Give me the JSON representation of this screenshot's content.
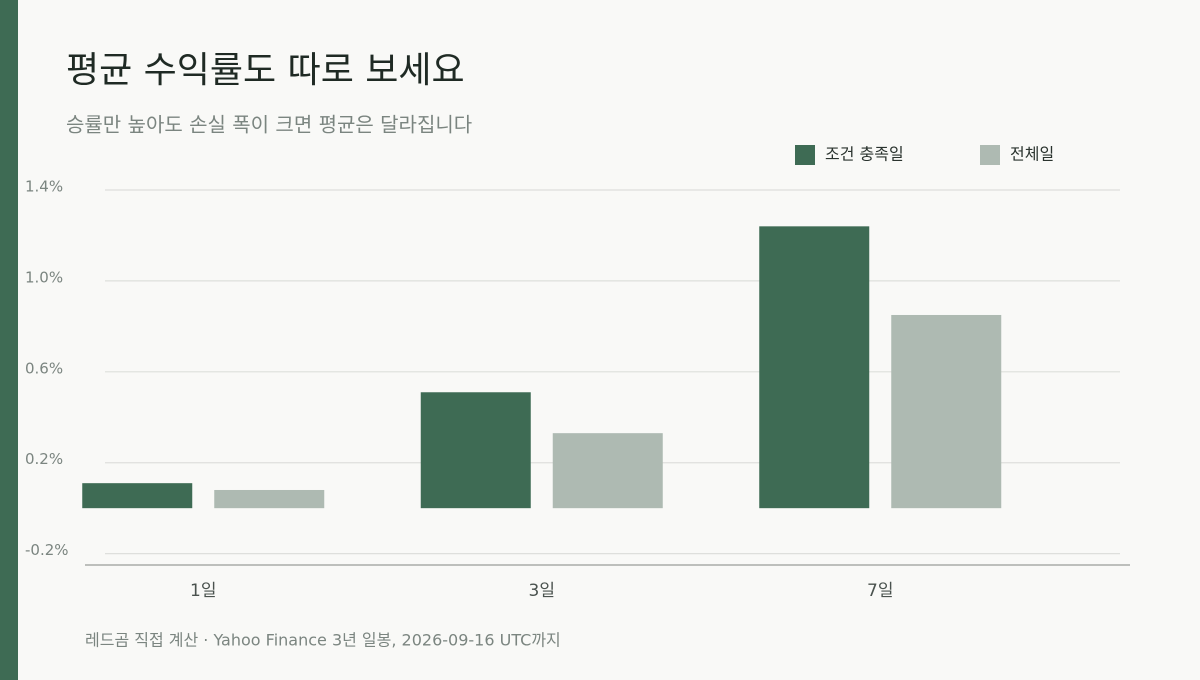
{
  "chart_data": {
    "type": "bar",
    "title": "평균 수익률도 따로 보세요",
    "subtitle": "승률만 높아도 손실 폭이 크면 평균은 달라집니다",
    "source": "레드곰 직접 계산 ·  Yahoo Finance 3년 일봉, 2026-09-16 UTC까지",
    "categories": [
      "1일",
      "3일",
      "7일"
    ],
    "series": [
      {
        "name": "조건 충족일",
        "color": "#3e6b54",
        "values": [
          0.11,
          0.51,
          1.24
        ]
      },
      {
        "name": "전체일",
        "color": "#aebab2",
        "values": [
          0.08,
          0.33,
          0.85
        ]
      }
    ],
    "ylim": [
      -0.25,
      1.45
    ],
    "yticks": [
      {
        "value": -0.2,
        "label": "-0.2%"
      },
      {
        "value": 0.2,
        "label": "0.2%"
      },
      {
        "value": 0.6,
        "label": "0.6%"
      },
      {
        "value": 1.0,
        "label": "1.0%"
      },
      {
        "value": 1.4,
        "label": "1.4%"
      }
    ],
    "grid": true,
    "legend": "top-right"
  }
}
